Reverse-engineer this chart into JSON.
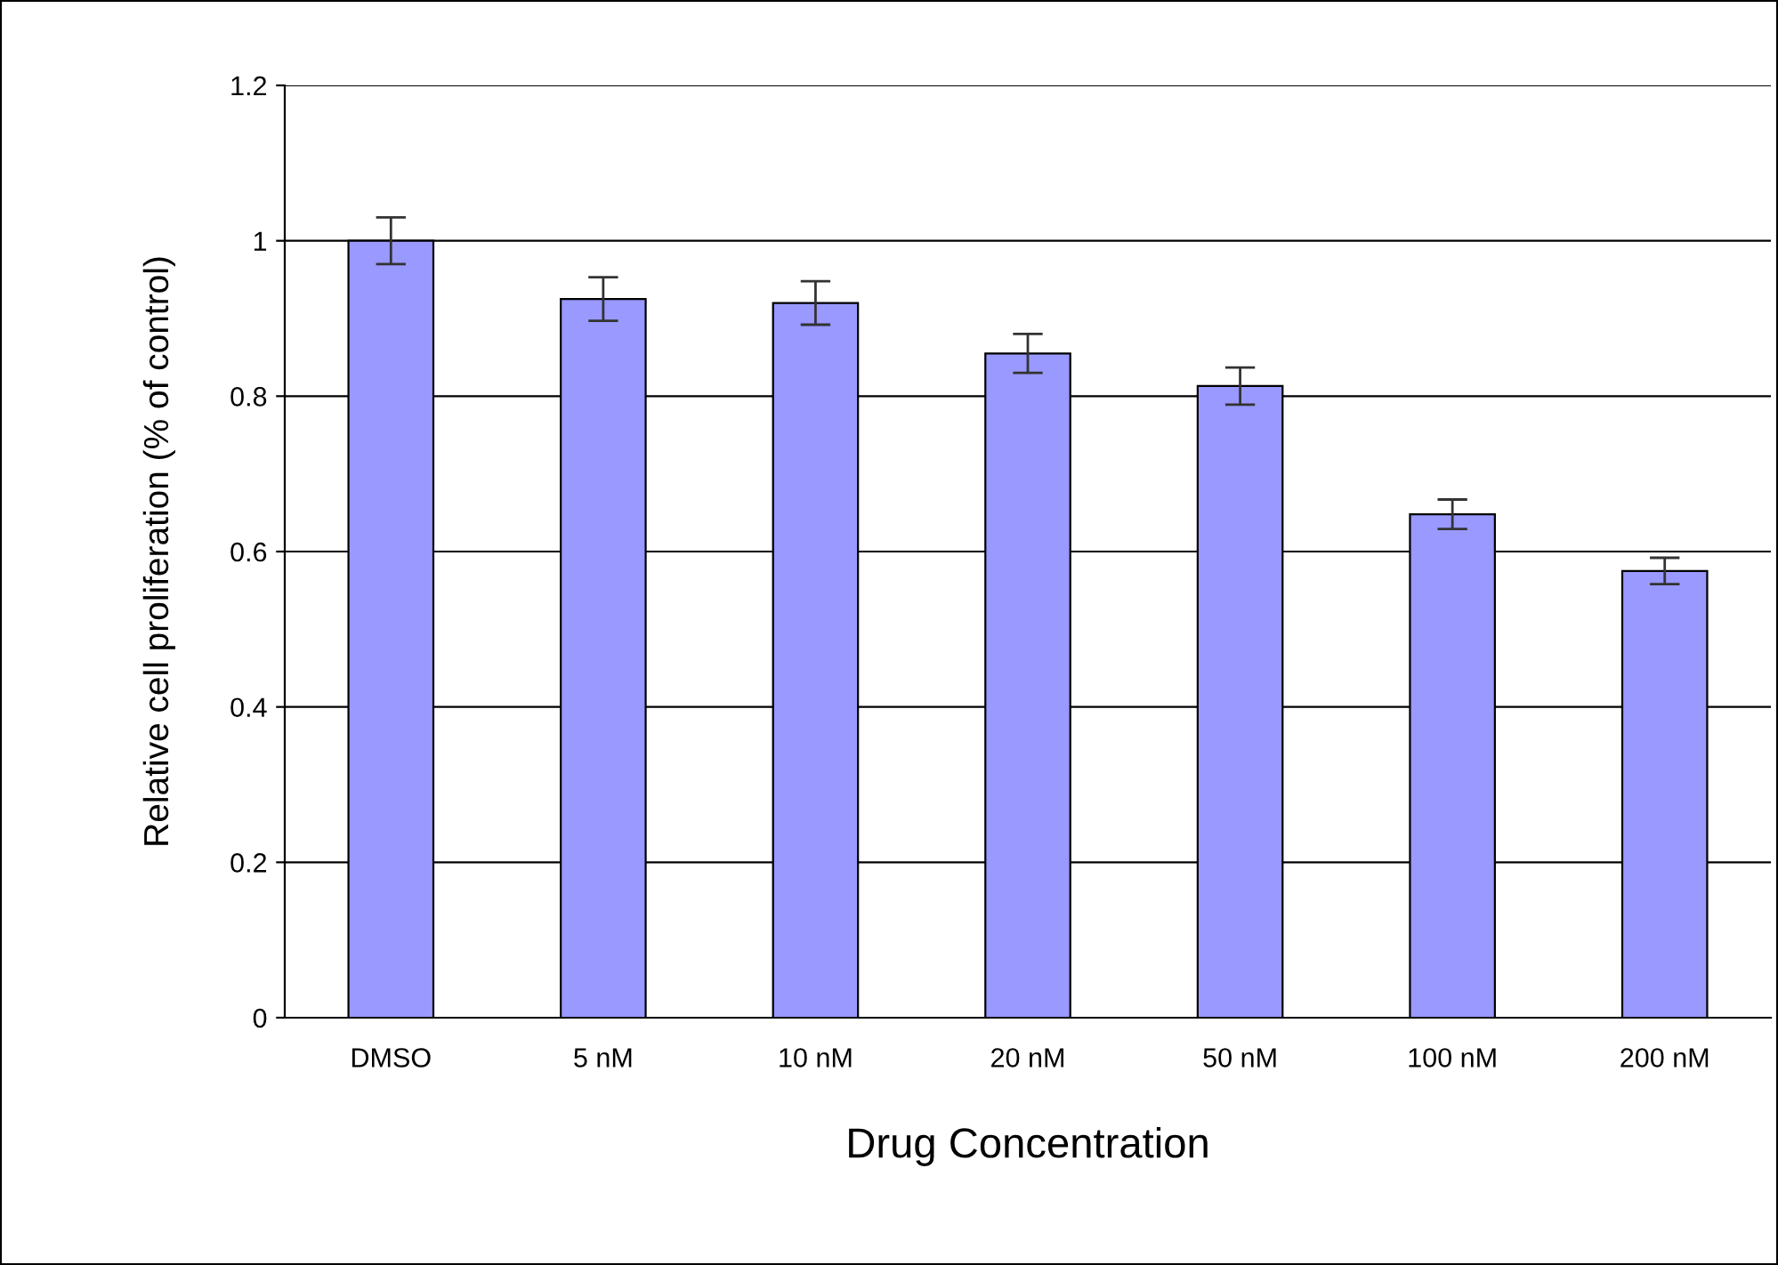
{
  "chart_data": {
    "type": "bar",
    "xlabel": "Drug Concentration",
    "ylabel": "Relative cell proliferation (% of control)",
    "categories": [
      "DMSO",
      "5 nM",
      "10 nM",
      "20 nM",
      "50 nM",
      "100 nM",
      "200 nM"
    ],
    "values": [
      1.0,
      0.925,
      0.92,
      0.855,
      0.813,
      0.648,
      0.575
    ],
    "errors": [
      0.03,
      0.028,
      0.028,
      0.025,
      0.024,
      0.019,
      0.017
    ],
    "color": "#9999ff",
    "ylim": [
      0,
      1.2
    ],
    "yticks": [
      0,
      0.2,
      0.4,
      0.6,
      0.8,
      1,
      1.2
    ],
    "grid": "y",
    "legend": false
  }
}
